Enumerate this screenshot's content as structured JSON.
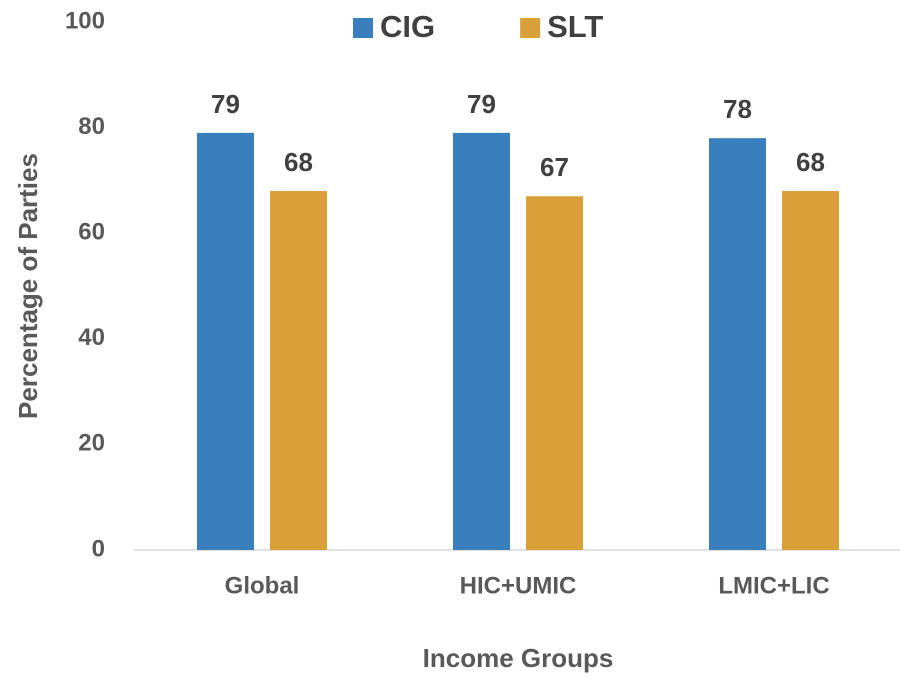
{
  "chart_data": {
    "type": "bar",
    "xlabel": "Income Groups",
    "ylabel": "Percentage of Parties",
    "categories": [
      "Global",
      "HIC+UMIC",
      "LMIC+LIC"
    ],
    "series": [
      {
        "name": "CIG",
        "color": "#3a7fbd",
        "values": [
          79,
          79,
          78
        ]
      },
      {
        "name": "SLT",
        "color": "#d9a03a",
        "values": [
          68,
          67,
          68
        ]
      }
    ],
    "ylim": [
      0,
      100
    ],
    "yticks": [
      0,
      20,
      40,
      60,
      80,
      100
    ],
    "grid": false,
    "legend": "top"
  }
}
